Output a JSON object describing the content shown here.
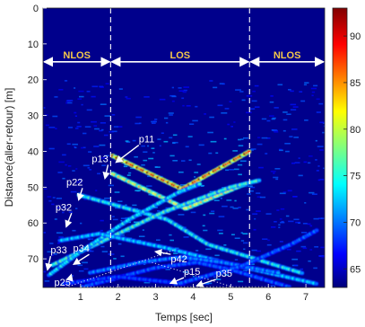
{
  "chart_data": {
    "type": "heatmap",
    "xlabel": "Temps [sec]",
    "ylabel": "Distance(aller-retour) [m]",
    "xlim": [
      0,
      7.5
    ],
    "ylim": [
      0,
      78
    ],
    "y_reversed": true,
    "x_ticks": [
      "1",
      "2",
      "3",
      "4",
      "5",
      "6",
      "7"
    ],
    "x_tick_values": [
      1,
      2,
      3,
      4,
      5,
      6,
      7
    ],
    "y_ticks": [
      "0",
      "10",
      "20",
      "30",
      "40",
      "50",
      "60",
      "70"
    ],
    "y_tick_values": [
      0,
      10,
      20,
      30,
      40,
      50,
      60,
      70
    ],
    "colorbar": {
      "range": [
        63,
        93
      ],
      "ticks": [
        "65",
        "70",
        "75",
        "80",
        "85",
        "90"
      ],
      "tick_values": [
        65,
        70,
        75,
        80,
        85,
        90
      ]
    },
    "zones": [
      {
        "label": "NLOS",
        "t_start": 0,
        "t_end": 1.8
      },
      {
        "label": "LOS",
        "t_start": 1.8,
        "t_end": 5.5
      },
      {
        "label": "NLOS",
        "t_start": 5.5,
        "t_end": 7.5
      }
    ],
    "zone_boundaries": [
      1.8,
      5.5
    ],
    "zone_arrow_distance": 15,
    "paths": [
      {
        "name": "p11",
        "points": [
          [
            1.8,
            41
          ],
          [
            3.7,
            50.5
          ],
          [
            5.5,
            40
          ]
        ],
        "strength": 1.0
      },
      {
        "name": "p13",
        "points": [
          [
            1.8,
            46
          ],
          [
            3.8,
            56
          ],
          [
            5.4,
            49
          ]
        ],
        "strength": 0.7
      },
      {
        "name": "p22",
        "points": [
          [
            0.9,
            52
          ],
          [
            3.3,
            59
          ],
          [
            4.4,
            66
          ],
          [
            6.9,
            74
          ]
        ],
        "strength": 0.45
      },
      {
        "name": "p32",
        "points": [
          [
            0.2,
            72
          ],
          [
            1.8,
            64
          ],
          [
            3.2,
            57
          ],
          [
            5.0,
            50
          ],
          [
            5.8,
            48
          ]
        ],
        "strength": 0.5
      },
      {
        "name": "p33",
        "points": [
          [
            0.1,
            75
          ],
          [
            1.0,
            68
          ],
          [
            2.3,
            59
          ],
          [
            3.6,
            51.5
          ],
          [
            4.2,
            49
          ]
        ],
        "strength": 0.42
      },
      {
        "name": "p34",
        "points": [
          [
            0.4,
            65
          ],
          [
            1.5,
            63
          ],
          [
            3.3,
            67
          ],
          [
            5.2,
            72
          ],
          [
            7.3,
            77
          ]
        ],
        "strength": 0.38
      },
      {
        "name": "p42",
        "points": [
          [
            1.2,
            74
          ],
          [
            2.6,
            71
          ],
          [
            3.7,
            69.5
          ],
          [
            4.8,
            71
          ],
          [
            6.3,
            74
          ]
        ],
        "strength": 0.3
      },
      {
        "name": "p15",
        "points": [
          [
            1.0,
            78
          ],
          [
            3.0,
            72.5
          ],
          [
            4.1,
            71
          ],
          [
            5.0,
            73
          ],
          [
            6.6,
            78
          ]
        ],
        "strength": 0.25
      },
      {
        "name": "p25",
        "points": [
          [
            0.5,
            77
          ],
          [
            2.0,
            75
          ],
          [
            3.8,
            77
          ]
        ],
        "strength": 0.22
      },
      {
        "name": "p35",
        "points": [
          [
            3.6,
            77
          ],
          [
            5.3,
            72
          ],
          [
            6.6,
            66
          ],
          [
            7.3,
            62
          ]
        ],
        "strength": 0.26
      }
    ],
    "annotations": [
      {
        "text": "p11",
        "tx": 2.55,
        "ty": 37.5,
        "ax": 1.95,
        "ay": 43
      },
      {
        "text": "p13",
        "tx": 1.3,
        "ty": 43,
        "ax": 1.65,
        "ay": 47.5
      },
      {
        "text": "p22",
        "tx": 0.62,
        "ty": 49.5,
        "ax": 0.95,
        "ay": 53.5
      },
      {
        "text": "p32",
        "tx": 0.33,
        "ty": 56.5,
        "ax": 0.62,
        "ay": 61
      },
      {
        "text": "p33",
        "tx": 0.2,
        "ty": 68.5,
        "ax": 0.12,
        "ay": 73
      },
      {
        "text": "p34",
        "tx": 0.8,
        "ty": 68,
        "ax": 0.82,
        "ay": 71.5
      },
      {
        "text": "p25",
        "tx": 0.3,
        "ty": 77.5,
        "ax": 0.75,
        "ay": 74.5
      },
      {
        "text": "p42",
        "tx": 3.4,
        "ty": 71,
        "ax": 3.0,
        "ay": 68
      },
      {
        "text": "p15",
        "tx": 3.75,
        "ty": 74.5,
        "ax": 3.4,
        "ay": 76.8
      },
      {
        "text": "p35",
        "tx": 4.6,
        "ty": 75,
        "ax": 4.1,
        "ay": 77.5
      }
    ],
    "dotted_guides": [
      [
        [
          0.6,
          78
        ],
        [
          3.5,
          67.5
        ]
      ],
      [
        [
          2.9,
          71
        ],
        [
          5.1,
          78
        ]
      ],
      [
        [
          1.0,
          77.8
        ],
        [
          6.2,
          77.8
        ]
      ]
    ]
  }
}
